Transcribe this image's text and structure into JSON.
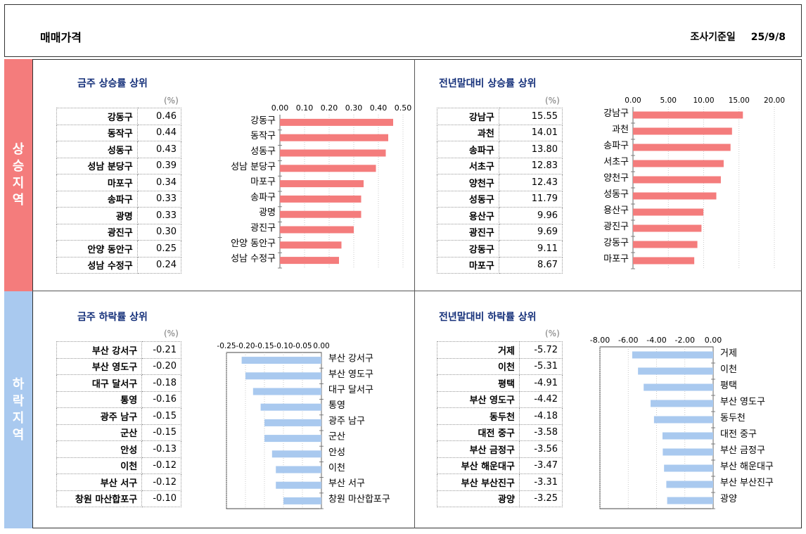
{
  "header": {
    "title": "매매가격",
    "survey_label": "조사기준일",
    "survey_date": "25/9/8"
  },
  "side_labels": {
    "rise": "상승지역",
    "fall": "하락지역"
  },
  "panels": {
    "weekly_rise": {
      "title": "금주 상승률 상위",
      "unit": "(%)",
      "rows": [
        {
          "name": "강동구",
          "value": "0.46"
        },
        {
          "name": "동작구",
          "value": "0.44"
        },
        {
          "name": "성동구",
          "value": "0.43"
        },
        {
          "name": "성남 분당구",
          "value": "0.39"
        },
        {
          "name": "마포구",
          "value": "0.34"
        },
        {
          "name": "송파구",
          "value": "0.33"
        },
        {
          "name": "광명",
          "value": "0.33"
        },
        {
          "name": "광진구",
          "value": "0.30"
        },
        {
          "name": "안양 동안구",
          "value": "0.25"
        },
        {
          "name": "성남 수정구",
          "value": "0.24"
        }
      ]
    },
    "ytd_rise": {
      "title": "전년말대비 상승률 상위",
      "unit": "(%)",
      "rows": [
        {
          "name": "강남구",
          "value": "15.55"
        },
        {
          "name": "과천",
          "value": "14.01"
        },
        {
          "name": "송파구",
          "value": "13.80"
        },
        {
          "name": "서초구",
          "value": "12.83"
        },
        {
          "name": "양천구",
          "value": "12.43"
        },
        {
          "name": "성동구",
          "value": "11.79"
        },
        {
          "name": "용산구",
          "value": "9.96"
        },
        {
          "name": "광진구",
          "value": "9.69"
        },
        {
          "name": "강동구",
          "value": "9.11"
        },
        {
          "name": "마포구",
          "value": "8.67"
        }
      ]
    },
    "weekly_fall": {
      "title": "금주 하락률 상위",
      "unit": "(%)",
      "rows": [
        {
          "name": "부산 강서구",
          "value": "-0.21"
        },
        {
          "name": "부산 영도구",
          "value": "-0.20"
        },
        {
          "name": "대구 달서구",
          "value": "-0.18"
        },
        {
          "name": "통영",
          "value": "-0.16"
        },
        {
          "name": "광주 남구",
          "value": "-0.15"
        },
        {
          "name": "군산",
          "value": "-0.15"
        },
        {
          "name": "안성",
          "value": "-0.13"
        },
        {
          "name": "이천",
          "value": "-0.12"
        },
        {
          "name": "부산 서구",
          "value": "-0.12"
        },
        {
          "name": "창원 마산합포구",
          "value": "-0.10"
        }
      ]
    },
    "ytd_fall": {
      "title": "전년말대비 하락률 상위",
      "unit": "(%)",
      "rows": [
        {
          "name": "거제",
          "value": "-5.72"
        },
        {
          "name": "이천",
          "value": "-5.31"
        },
        {
          "name": "평택",
          "value": "-4.91"
        },
        {
          "name": "부산 영도구",
          "value": "-4.42"
        },
        {
          "name": "동두천",
          "value": "-4.18"
        },
        {
          "name": "대전 중구",
          "value": "-3.58"
        },
        {
          "name": "부산 금정구",
          "value": "-3.56"
        },
        {
          "name": "부산 해운대구",
          "value": "-3.47"
        },
        {
          "name": "부산 부산진구",
          "value": "-3.31"
        },
        {
          "name": "광양",
          "value": "-3.25"
        }
      ]
    }
  },
  "chart_data": [
    {
      "id": "weekly_rise",
      "type": "bar",
      "orientation": "horizontal",
      "color": "#f47c7c",
      "categories": [
        "강동구",
        "동작구",
        "성동구",
        "성남 분당구",
        "마포구",
        "송파구",
        "광명",
        "광진구",
        "안양 동안구",
        "성남 수정구"
      ],
      "values": [
        0.46,
        0.44,
        0.43,
        0.39,
        0.34,
        0.33,
        0.33,
        0.3,
        0.25,
        0.24
      ],
      "xlim": [
        0,
        0.5
      ],
      "ticks": [
        "0.00",
        "0.10",
        "0.20",
        "0.30",
        "0.40",
        "0.50"
      ],
      "axis_position": "top",
      "grid": true
    },
    {
      "id": "ytd_rise",
      "type": "bar",
      "orientation": "horizontal",
      "color": "#f47c7c",
      "categories": [
        "강남구",
        "과천",
        "송파구",
        "서초구",
        "양천구",
        "성동구",
        "용산구",
        "광진구",
        "강동구",
        "마포구"
      ],
      "values": [
        15.55,
        14.01,
        13.8,
        12.83,
        12.43,
        11.79,
        9.96,
        9.69,
        9.11,
        8.67
      ],
      "xlim": [
        0,
        20
      ],
      "ticks": [
        "0.00",
        "5.00",
        "10.00",
        "15.00",
        "20.00"
      ],
      "axis_position": "top",
      "grid": true
    },
    {
      "id": "weekly_fall",
      "type": "bar",
      "orientation": "horizontal",
      "color": "#a9c9ef",
      "categories": [
        "부산 강서구",
        "부산 영도구",
        "대구 달서구",
        "통영",
        "광주 남구",
        "군산",
        "안성",
        "이천",
        "부산 서구",
        "창원 마산합포구"
      ],
      "values": [
        -0.21,
        -0.2,
        -0.18,
        -0.16,
        -0.15,
        -0.15,
        -0.13,
        -0.12,
        -0.12,
        -0.1
      ],
      "xlim": [
        -0.25,
        0
      ],
      "ticks": [
        "-0.25",
        "-0.20",
        "-0.15",
        "-0.10",
        "-0.05",
        "0.00"
      ],
      "axis_position": "top",
      "grid": true
    },
    {
      "id": "ytd_fall",
      "type": "bar",
      "orientation": "horizontal",
      "color": "#a9c9ef",
      "categories": [
        "거제",
        "이천",
        "평택",
        "부산 영도구",
        "동두천",
        "대전 중구",
        "부산 금정구",
        "부산 해운대구",
        "부산 부산진구",
        "광양"
      ],
      "values": [
        -5.72,
        -5.31,
        -4.91,
        -4.42,
        -4.18,
        -3.58,
        -3.56,
        -3.47,
        -3.31,
        -3.25
      ],
      "xlim": [
        -8,
        0
      ],
      "ticks": [
        "-8.00",
        "-6.00",
        "-4.00",
        "-2.00",
        "0.00"
      ],
      "axis_position": "top",
      "grid": true
    }
  ]
}
